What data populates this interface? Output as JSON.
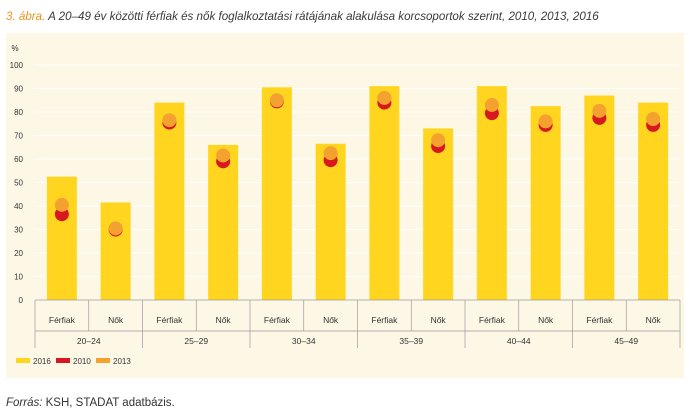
{
  "figure": {
    "number": "3. ábra.",
    "title": "A 20–49 év közötti férfiak és nők foglalkoztatási rátájának alakulása korcsoportok szerint, 2010, 2013, 2016"
  },
  "source": {
    "label": "Forrás:",
    "text": "KSH, STADAT adatbázis."
  },
  "colors": {
    "bar_2016": "#ffd51f",
    "dot_2010": "#d7191f",
    "dot_2013": "#f3a12f",
    "background": "#fdf8e6",
    "grid": "#ffffff"
  },
  "chart_data": {
    "type": "bar",
    "ylabel": "%",
    "ylim": [
      0,
      100
    ],
    "yticks": [
      0,
      10,
      20,
      30,
      40,
      50,
      60,
      70,
      80,
      90,
      100
    ],
    "groups": [
      "20–24",
      "25–29",
      "30–34",
      "35–39",
      "40–44",
      "45–49"
    ],
    "subcategories": [
      "Férfiak",
      "Nők"
    ],
    "categories": [
      "20–24 Férfiak",
      "20–24 Nők",
      "25–29 Férfiak",
      "25–29 Nők",
      "30–34 Férfiak",
      "30–34 Nők",
      "35–39 Férfiak",
      "35–39 Nők",
      "40–44 Férfiak",
      "40–44 Nők",
      "45–49 Férfiak",
      "45–49 Nők"
    ],
    "series": [
      {
        "name": "2016",
        "mark": "bar",
        "values": [
          52.5,
          41.5,
          84,
          66,
          90.5,
          66.5,
          91,
          73,
          91,
          82.5,
          87,
          84
        ]
      },
      {
        "name": "2010",
        "mark": "dot",
        "values": [
          36.5,
          30,
          75.5,
          59,
          84.5,
          59.5,
          84,
          65.5,
          79.5,
          74.5,
          77.5,
          74.5
        ]
      },
      {
        "name": "2013",
        "mark": "dot",
        "values": [
          40.5,
          30.5,
          76.5,
          61.5,
          85,
          62.5,
          86,
          68,
          83,
          76,
          80.5,
          77
        ]
      }
    ],
    "legend": [
      "2016",
      "2010",
      "2013"
    ],
    "legend_position": "bottom-left"
  }
}
